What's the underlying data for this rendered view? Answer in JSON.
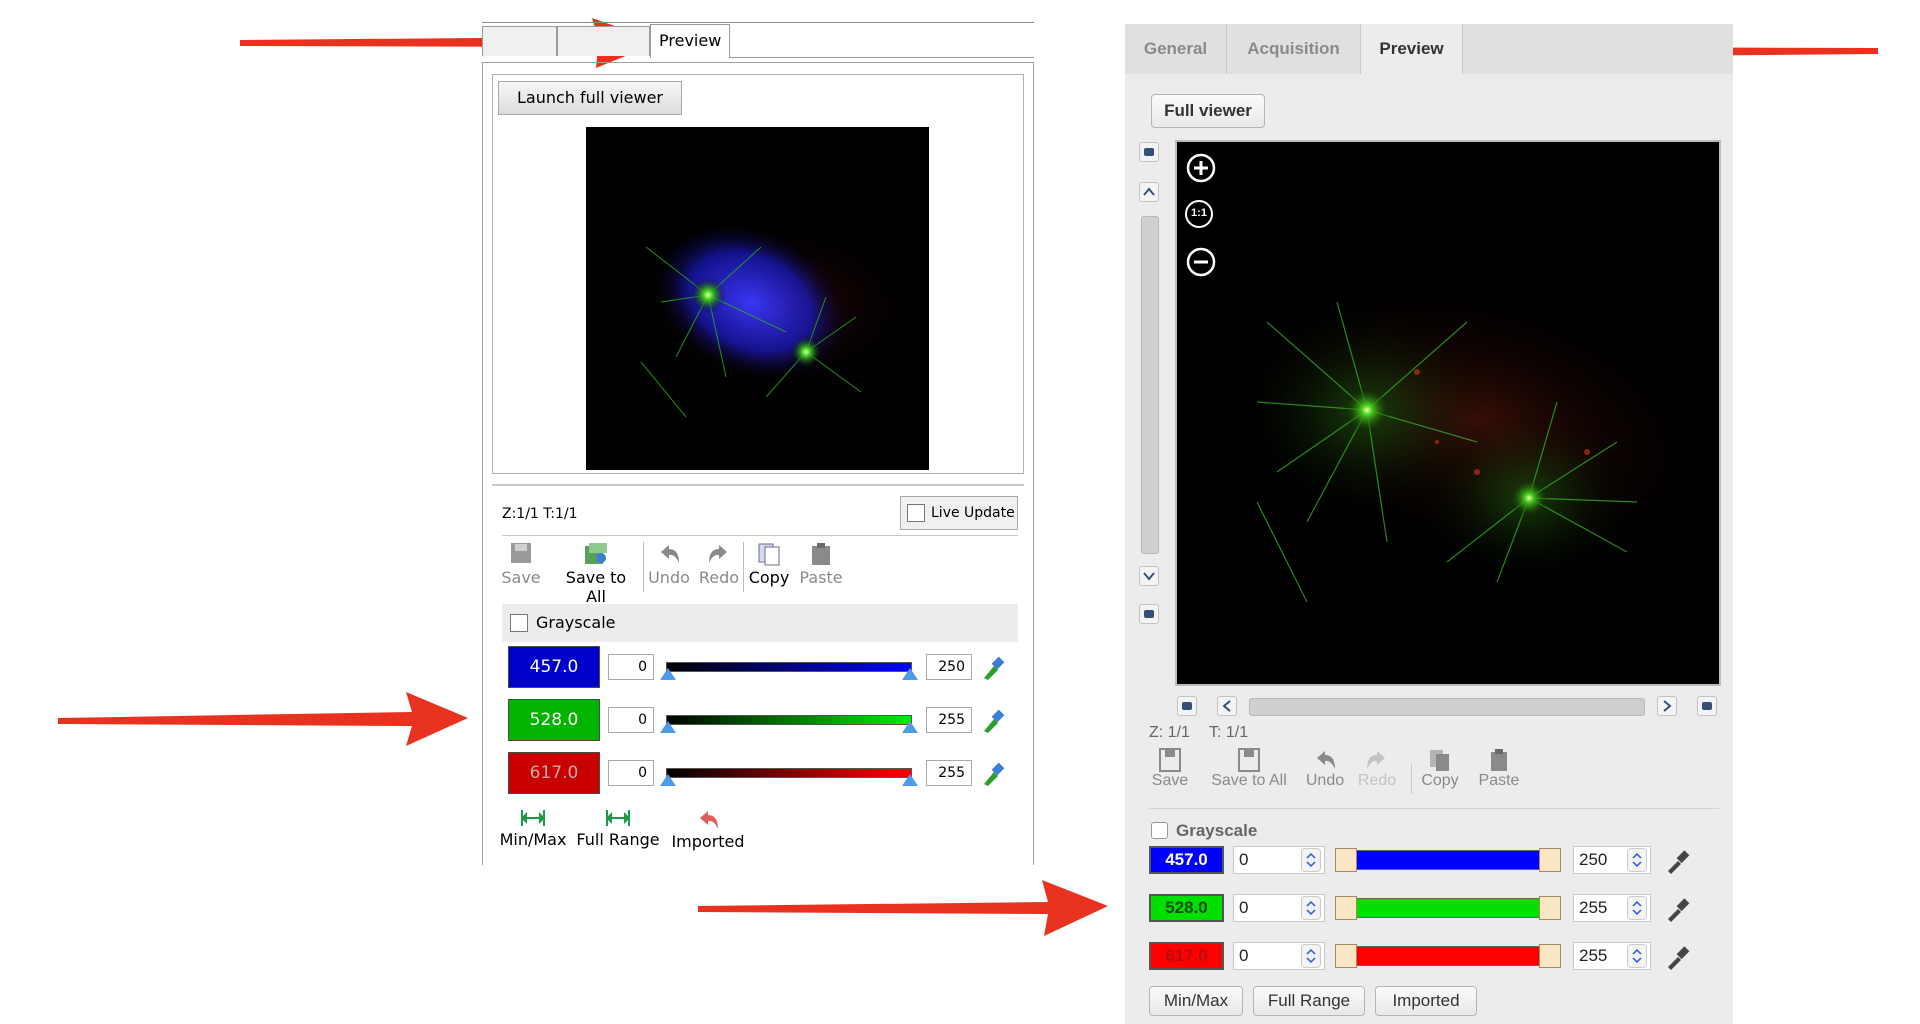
{
  "left_panel": {
    "tabs": [
      "",
      "",
      "Preview"
    ],
    "launch_button": "Launch full viewer",
    "position": "Z:1/1 T:1/1",
    "live_update": "Live Update",
    "toolbar": {
      "save": "Save",
      "save_all": "Save to All",
      "undo": "Undo",
      "redo": "Redo",
      "copy": "Copy",
      "paste": "Paste"
    },
    "grayscale": "Grayscale",
    "channels": [
      {
        "label": "457.0",
        "min": "0",
        "max": "250",
        "color": "#0000cc"
      },
      {
        "label": "528.0",
        "min": "0",
        "max": "255",
        "color": "#00b400"
      },
      {
        "label": "617.0",
        "min": "0",
        "max": "255",
        "color": "#c80000"
      }
    ],
    "actions": {
      "minmax": "Min/Max",
      "full_range": "Full Range",
      "imported": "Imported"
    }
  },
  "right_panel": {
    "tabs": [
      "General",
      "Acquisition",
      "Preview"
    ],
    "full_viewer_button": "Full viewer",
    "zoom": {
      "reset": "1:1"
    },
    "z_label": "Z: 1/1",
    "t_label": "T: 1/1",
    "toolbar": {
      "save": "Save",
      "save_all": "Save to All",
      "undo": "Undo",
      "redo": "Redo",
      "copy": "Copy",
      "paste": "Paste"
    },
    "grayscale": "Grayscale",
    "channels": [
      {
        "label": "457.0",
        "min": "0",
        "max": "250",
        "color": "#0000ff"
      },
      {
        "label": "528.0",
        "min": "0",
        "max": "255",
        "color": "#00e000"
      },
      {
        "label": "617.0",
        "min": "0",
        "max": "255",
        "color": "#ff0000"
      }
    ],
    "buttons": {
      "minmax": "Min/Max",
      "full_range": "Full Range",
      "imported": "Imported"
    }
  },
  "annotation_arrow_color": "#e8321f"
}
